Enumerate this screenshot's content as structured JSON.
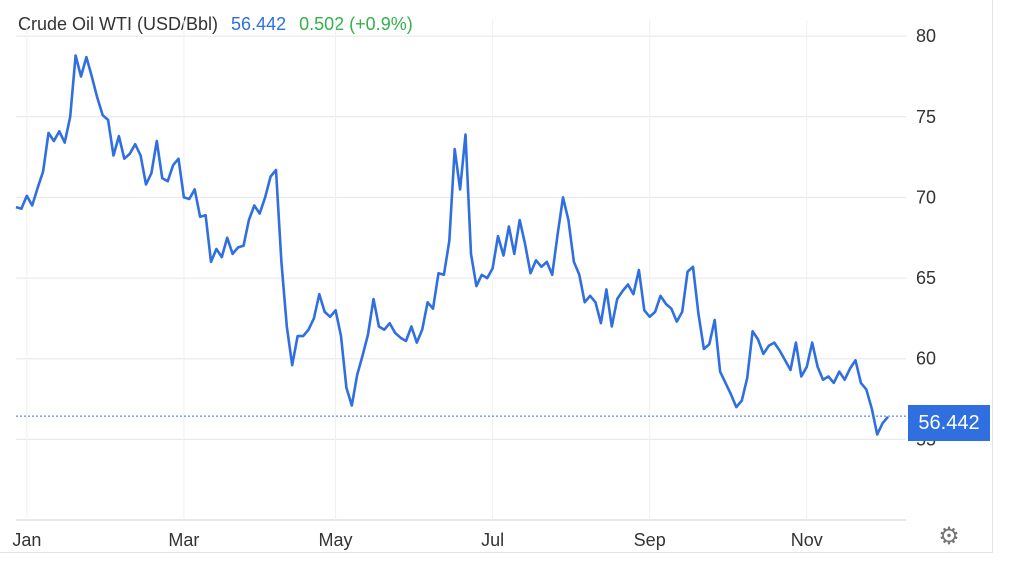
{
  "header": {
    "title": "Crude Oil WTI (USD/Bbl)",
    "price": "56.442",
    "change": "0.502 (+0.9%)"
  },
  "price_tag": "56.442",
  "settings_icon": "gear-icon",
  "colors": {
    "line": "#2f6fe0",
    "change": "#35b04a",
    "grid": "#e6e6e6"
  },
  "chart_data": {
    "type": "line",
    "title": "Crude Oil WTI (USD/Bbl)",
    "xlabel": "",
    "ylabel": "",
    "x_ticks": [
      "Jan",
      "Mar",
      "May",
      "Jul",
      "Sep",
      "Nov"
    ],
    "y_ticks": [
      55,
      60,
      65,
      70,
      75,
      80
    ],
    "ylim": [
      50,
      81
    ],
    "grid": true,
    "last_value": 56.442,
    "series": [
      {
        "name": "",
        "values": [
          69.4,
          69.3,
          70.1,
          69.5,
          70.6,
          71.6,
          74.0,
          73.5,
          74.1,
          73.4,
          75.0,
          78.8,
          77.5,
          78.7,
          77.5,
          76.2,
          75.1,
          74.8,
          72.6,
          73.8,
          72.4,
          72.7,
          73.3,
          72.6,
          70.8,
          71.5,
          73.5,
          71.2,
          71.0,
          72.0,
          72.4,
          70.0,
          69.9,
          70.5,
          68.8,
          68.9,
          66.0,
          66.8,
          66.3,
          67.5,
          66.5,
          66.9,
          67.0,
          68.6,
          69.5,
          69.0,
          70.0,
          71.3,
          71.7,
          66.0,
          62.0,
          59.6,
          61.4,
          61.4,
          61.8,
          62.5,
          64.0,
          62.9,
          62.6,
          63.0,
          61.4,
          58.2,
          57.1,
          59.0,
          60.2,
          61.5,
          63.7,
          62.0,
          61.8,
          62.2,
          61.6,
          61.3,
          61.1,
          62.0,
          61.0,
          61.8,
          63.5,
          63.1,
          65.3,
          65.2,
          67.3,
          73.0,
          70.5,
          73.9,
          66.5,
          64.5,
          65.2,
          65.0,
          65.6,
          67.6,
          66.4,
          68.2,
          66.5,
          68.6,
          67.1,
          65.3,
          66.1,
          65.7,
          66.0,
          65.2,
          67.7,
          70.0,
          68.6,
          66.0,
          65.2,
          63.5,
          63.9,
          63.5,
          62.2,
          64.3,
          62.0,
          63.7,
          64.2,
          64.6,
          64.0,
          65.5,
          63.0,
          62.6,
          62.9,
          63.9,
          63.4,
          63.1,
          62.3,
          62.9,
          65.4,
          65.7,
          62.8,
          60.6,
          60.9,
          62.4,
          59.2,
          58.5,
          57.8,
          57.0,
          57.4,
          58.8,
          61.7,
          61.2,
          60.3,
          60.8,
          61.0,
          60.5,
          59.9,
          59.3,
          61.0,
          58.9,
          59.5,
          61.0,
          59.5,
          58.7,
          58.9,
          58.5,
          59.2,
          58.7,
          59.4,
          59.9,
          58.5,
          58.1,
          56.9,
          55.3,
          56.0,
          56.4
        ]
      }
    ]
  }
}
